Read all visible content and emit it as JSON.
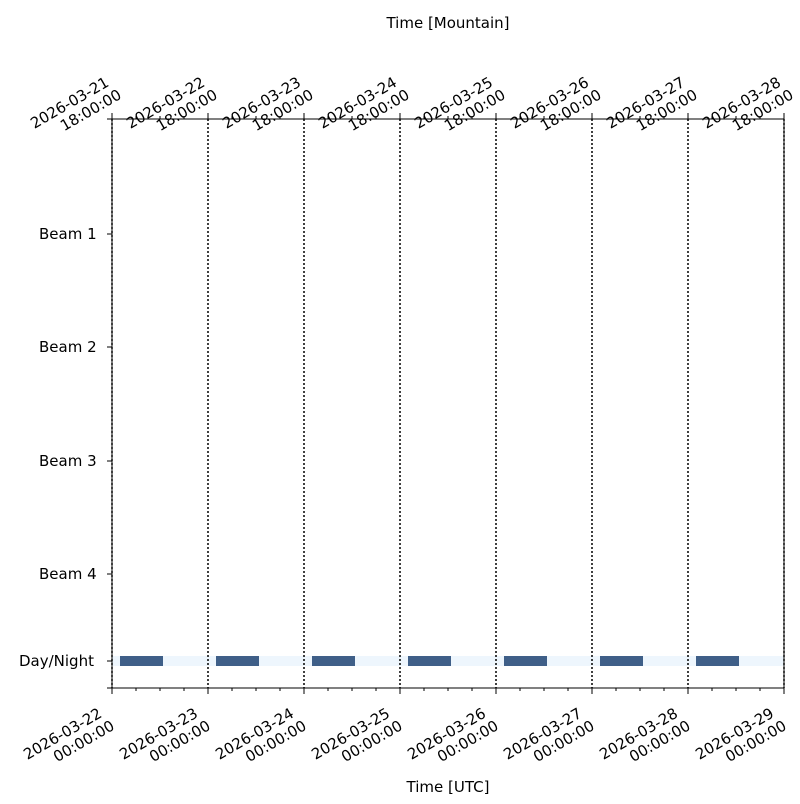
{
  "chart_data": {
    "type": "timeline",
    "x_label": "Time [UTC]",
    "x2_label": "Time [Mountain]",
    "categories": [
      "Beam 1",
      "Beam 2",
      "Beam 3",
      "Beam 4",
      "Day/Night"
    ],
    "xlim": [
      "2026-03-22 00:00:00",
      "2026-03-29 00:00:00"
    ],
    "xticks": [
      "2026-03-22 00:00:00",
      "2026-03-23 00:00:00",
      "2026-03-24 00:00:00",
      "2026-03-25 00:00:00",
      "2026-03-26 00:00:00",
      "2026-03-27 00:00:00",
      "2026-03-28 00:00:00",
      "2026-03-29 00:00:00"
    ],
    "x2lim": [
      "2026-03-21 18:00:00",
      "2026-03-28 18:00:00"
    ],
    "x2ticks": [
      "2026-03-21 18:00:00",
      "2026-03-22 18:00:00",
      "2026-03-23 18:00:00",
      "2026-03-24 18:00:00",
      "2026-03-25 18:00:00",
      "2026-03-26 18:00:00",
      "2026-03-27 18:00:00",
      "2026-03-28 18:00:00"
    ],
    "minor_tick_hours": 6,
    "grid": "dotted",
    "night": [
      [
        "2026-03-22 02:00:00",
        "2026-03-22 12:45:00"
      ],
      [
        "2026-03-23 02:00:00",
        "2026-03-23 12:45:00"
      ],
      [
        "2026-03-24 02:00:00",
        "2026-03-24 12:45:00"
      ],
      [
        "2026-03-25 02:00:00",
        "2026-03-25 12:45:00"
      ],
      [
        "2026-03-26 02:00:00",
        "2026-03-26 12:45:00"
      ],
      [
        "2026-03-27 02:00:00",
        "2026-03-27 12:45:00"
      ],
      [
        "2026-03-28 02:00:00",
        "2026-03-28 12:45:00"
      ]
    ],
    "night_color": "#3f5f88",
    "day_color": "#eef6fd"
  }
}
